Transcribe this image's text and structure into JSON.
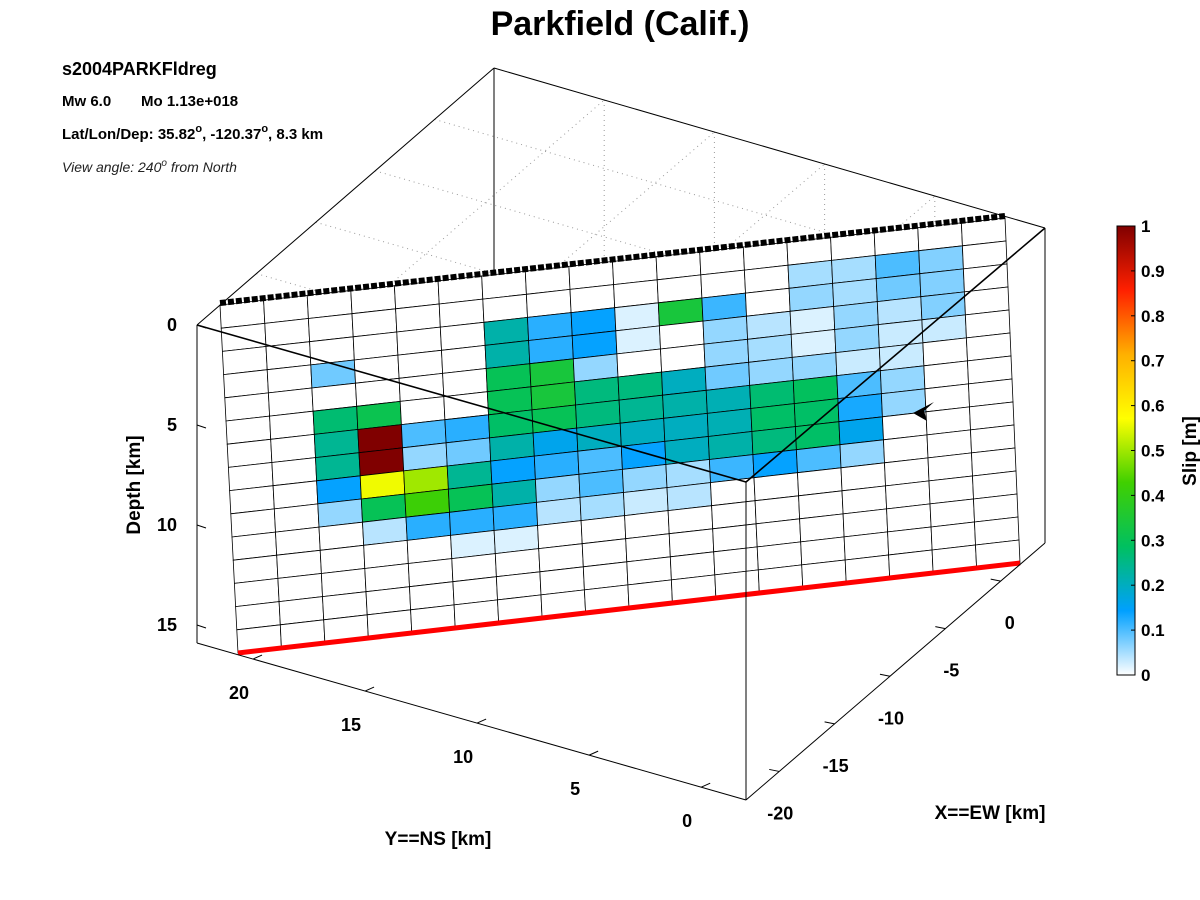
{
  "info": {
    "event_name": "s2004PARKFldreg",
    "magnitude": "Mw 6.0",
    "moment": "Mo 1.13e+018",
    "location_prefix": "Lat/Lon/Dep: 35.82",
    "location_lon": ", -120.37",
    "location_dep": ", 8.3 km",
    "deg": "o",
    "view_prefix": "View angle: 240",
    "view_suffix": " from North"
  },
  "chart_data": {
    "type": "heatmap",
    "title": "Parkfield (Calif.)",
    "xlabel": "X==EW [km]",
    "ylabel": "Y==NS [km]",
    "zlabel": "Depth [km]",
    "colorbar_label": "Slip [m]",
    "x_ticks": [
      "0",
      "-5",
      "-10",
      "-15",
      "-20"
    ],
    "y_ticks": [
      "20",
      "15",
      "10",
      "5",
      "0"
    ],
    "z_ticks": [
      "0",
      "5",
      "10",
      "15"
    ],
    "colorbar_ticks": [
      "1",
      "0.9",
      "0.8",
      "0.7",
      "0.6",
      "0.5",
      "0.4",
      "0.3",
      "0.2",
      "0.1",
      "0"
    ],
    "colorbar_range": [
      0,
      1
    ],
    "colormap": [
      "#ffffff",
      "#00a0ff",
      "#00c060",
      "#40d000",
      "#ffff00",
      "#ffb000",
      "#ff2000",
      "#800000"
    ],
    "fault_rows": 15,
    "fault_cols": 18,
    "slip": [
      [
        0.0,
        0.0,
        0.0,
        0.0,
        0.0,
        0.0,
        0.0,
        0.0,
        0.0,
        0.0,
        0.0,
        0.0,
        0.0,
        0.0,
        0.0,
        0.0,
        0.0,
        0.0
      ],
      [
        0.0,
        0.0,
        0.0,
        0.0,
        0.0,
        0.0,
        0.0,
        0.0,
        0.0,
        0.0,
        0.0,
        0.0,
        0.0,
        0.05,
        0.05,
        0.1,
        0.07,
        0.0
      ],
      [
        0.0,
        0.0,
        0.0,
        0.0,
        0.0,
        0.0,
        0.22,
        0.12,
        0.14,
        0.02,
        0.34,
        0.11,
        0.0,
        0.06,
        0.05,
        0.08,
        0.07,
        0.0
      ],
      [
        0.0,
        0.0,
        0.08,
        0.0,
        0.0,
        0.0,
        0.22,
        0.12,
        0.14,
        0.02,
        0.0,
        0.06,
        0.04,
        0.02,
        0.06,
        0.04,
        0.07,
        0.0
      ],
      [
        0.0,
        0.0,
        0.0,
        0.0,
        0.0,
        0.0,
        0.3,
        0.34,
        0.06,
        0.0,
        0.0,
        0.06,
        0.05,
        0.02,
        0.06,
        0.03,
        0.03,
        0.0
      ],
      [
        0.0,
        0.0,
        0.27,
        0.31,
        0.0,
        0.0,
        0.3,
        0.34,
        0.26,
        0.26,
        0.2,
        0.08,
        0.06,
        0.06,
        0.03,
        0.03,
        0.0,
        0.0
      ],
      [
        0.0,
        0.0,
        0.24,
        1.0,
        0.1,
        0.12,
        0.28,
        0.3,
        0.26,
        0.24,
        0.22,
        0.21,
        0.27,
        0.29,
        0.1,
        0.06,
        0.0,
        0.0
      ],
      [
        0.0,
        0.0,
        0.24,
        1.0,
        0.06,
        0.08,
        0.22,
        0.16,
        0.2,
        0.2,
        0.2,
        0.21,
        0.28,
        0.28,
        0.13,
        0.06,
        0.0,
        0.0
      ],
      [
        0.0,
        0.0,
        0.14,
        0.56,
        0.5,
        0.24,
        0.14,
        0.12,
        0.1,
        0.14,
        0.2,
        0.22,
        0.26,
        0.28,
        0.16,
        0.0,
        0.0,
        0.0
      ],
      [
        0.0,
        0.0,
        0.06,
        0.3,
        0.42,
        0.3,
        0.22,
        0.06,
        0.1,
        0.06,
        0.05,
        0.11,
        0.14,
        0.1,
        0.06,
        0.0,
        0.0,
        0.0
      ],
      [
        0.0,
        0.0,
        0.0,
        0.04,
        0.12,
        0.12,
        0.12,
        0.04,
        0.05,
        0.03,
        0.04,
        0.0,
        0.0,
        0.0,
        0.0,
        0.0,
        0.0,
        0.0
      ],
      [
        0.0,
        0.0,
        0.0,
        0.0,
        0.0,
        0.02,
        0.02,
        0.0,
        0.0,
        0.0,
        0.0,
        0.0,
        0.0,
        0.0,
        0.0,
        0.0,
        0.0,
        0.0
      ],
      [
        0.0,
        0.0,
        0.0,
        0.0,
        0.0,
        0.0,
        0.0,
        0.0,
        0.0,
        0.0,
        0.0,
        0.0,
        0.0,
        0.0,
        0.0,
        0.0,
        0.0,
        0.0
      ],
      [
        0.0,
        0.0,
        0.0,
        0.0,
        0.0,
        0.0,
        0.0,
        0.0,
        0.0,
        0.0,
        0.0,
        0.0,
        0.0,
        0.0,
        0.0,
        0.0,
        0.0,
        0.0
      ],
      [
        0.0,
        0.0,
        0.0,
        0.0,
        0.0,
        0.0,
        0.0,
        0.0,
        0.0,
        0.0,
        0.0,
        0.0,
        0.0,
        0.0,
        0.0,
        0.0,
        0.0,
        0.0
      ]
    ]
  }
}
